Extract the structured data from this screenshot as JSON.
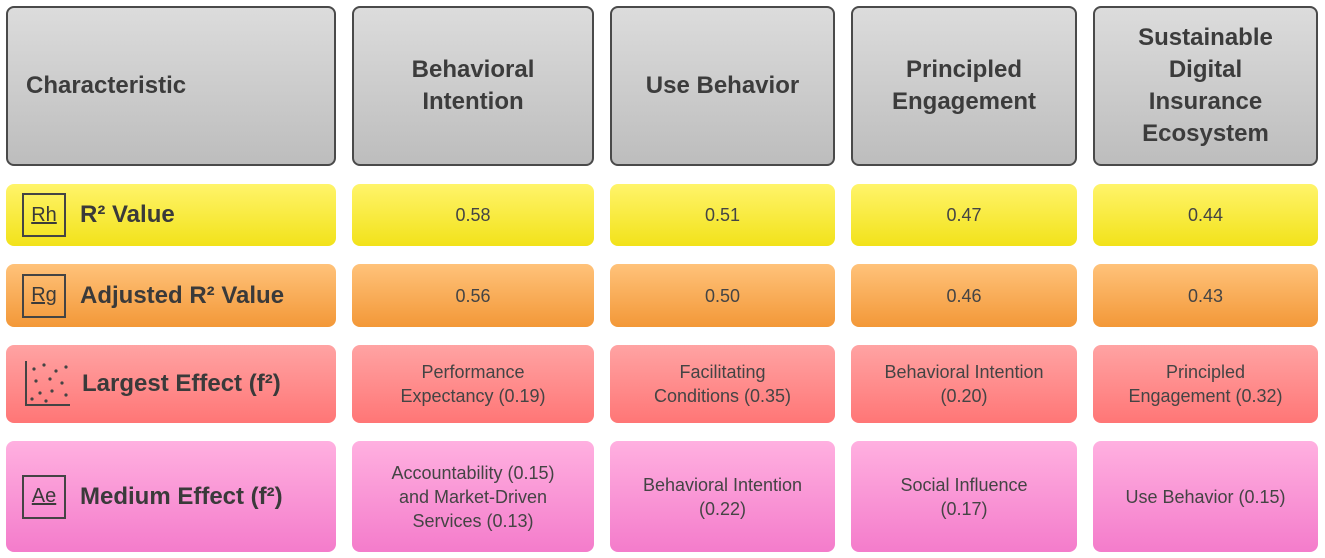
{
  "table": {
    "header": [
      [
        "Characteristic"
      ],
      [
        "Behavioral",
        "Intention"
      ],
      [
        "Use Behavior"
      ],
      [
        "Principled",
        "Engagement"
      ],
      [
        "Sustainable",
        "Digital",
        "Insurance",
        "Ecosystem"
      ]
    ],
    "rows": [
      {
        "icon": "Rh",
        "label": "R² Value",
        "cells": [
          [
            "0.58"
          ],
          [
            "0.51"
          ],
          [
            "0.47"
          ],
          [
            "0.44"
          ]
        ]
      },
      {
        "icon": "Rg",
        "label": "Adjusted R² Value",
        "cells": [
          [
            "0.56"
          ],
          [
            "0.50"
          ],
          [
            "0.46"
          ],
          [
            "0.43"
          ]
        ]
      },
      {
        "label": "Largest Effect (f²)",
        "cells": [
          [
            "Performance",
            "Expectancy (0.19)"
          ],
          [
            "Facilitating",
            "Conditions (0.35)"
          ],
          [
            "Behavioral Intention",
            "(0.20)"
          ],
          [
            "Principled",
            "Engagement (0.32)"
          ]
        ]
      },
      {
        "icon": "Ae",
        "label": "Medium Effect (f²)",
        "cells": [
          [
            "Accountability (0.15)",
            "and Market-Driven",
            "Services (0.13)"
          ],
          [
            "Behavioral Intention",
            "(0.22)"
          ],
          [
            "Social Influence",
            "(0.17)"
          ],
          [
            "Use Behavior (0.15)"
          ]
        ]
      }
    ]
  }
}
